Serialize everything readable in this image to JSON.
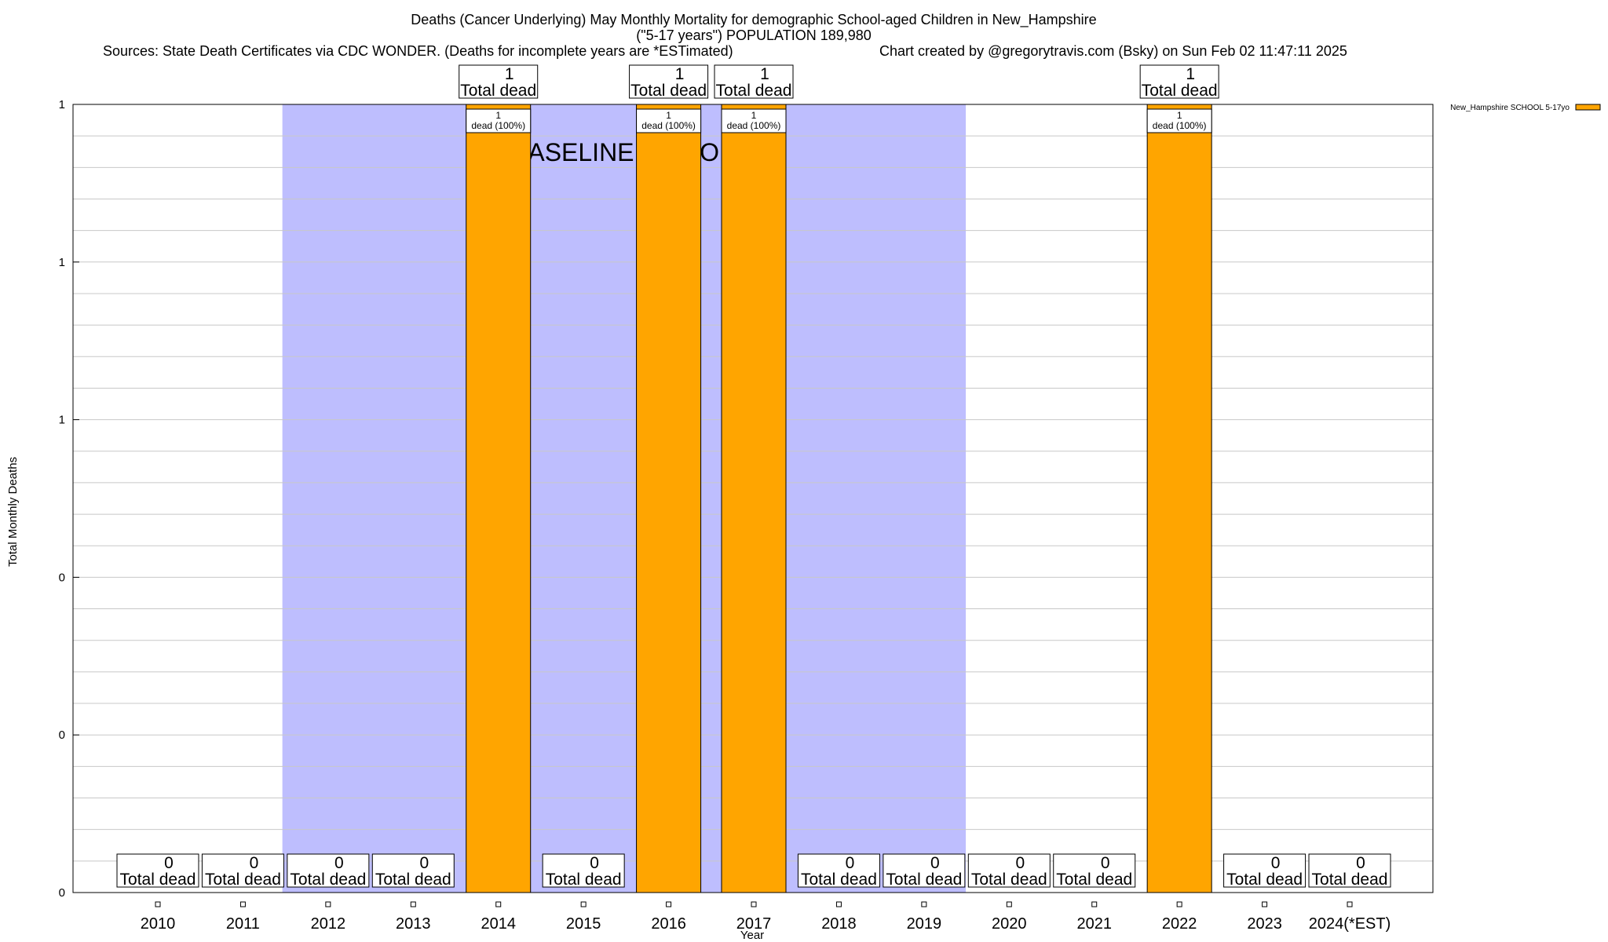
{
  "chart_data": {
    "type": "bar",
    "title_lines": [
      "Deaths (Cancer Underlying) May Monthly Mortality for demographic School-aged Children in New_Hampshire",
      "(\"5-17 years\") POPULATION 189,980"
    ],
    "subtitle_left": "Sources: State Death Certificates via CDC WONDER. (Deaths for incomplete years are *ESTimated)",
    "subtitle_right": "Chart created by @gregorytravis.com (Bsky) on Sun Feb 02 11:47:11 2025",
    "xlabel": "Year",
    "ylabel": "Total Monthly Deaths",
    "ylim": [
      0,
      1
    ],
    "y_tick_values": [
      0,
      0.2,
      0.4,
      0.6,
      0.8,
      1
    ],
    "y_tick_labels": [
      "0",
      "0",
      "0",
      "1",
      "1",
      "1"
    ],
    "grid": true,
    "categories": [
      "2010",
      "2011",
      "2012",
      "2013",
      "2014",
      "2015",
      "2016",
      "2017",
      "2018",
      "2019",
      "2020",
      "2021",
      "2022",
      "2023",
      "2024(*EST)"
    ],
    "values": [
      0,
      0,
      0,
      0,
      1,
      0,
      1,
      1,
      0,
      0,
      0,
      0,
      1,
      0,
      0
    ],
    "total_label": "Total dead",
    "percent_label": "dead (100%)",
    "baseline_label": "BASELINE PERIOD",
    "baseline_start": "2012",
    "baseline_end": "2019",
    "series": [
      {
        "name": "New_Hampshire SCHOOL 5-17yo",
        "values": [
          0,
          0,
          0,
          0,
          1,
          0,
          1,
          1,
          0,
          0,
          0,
          0,
          1,
          0,
          0
        ]
      }
    ],
    "legend_position": "top-right",
    "colors": {
      "bar": "#ffa500",
      "baseline": "#bebefe",
      "grid": "#c8c8c8"
    }
  }
}
